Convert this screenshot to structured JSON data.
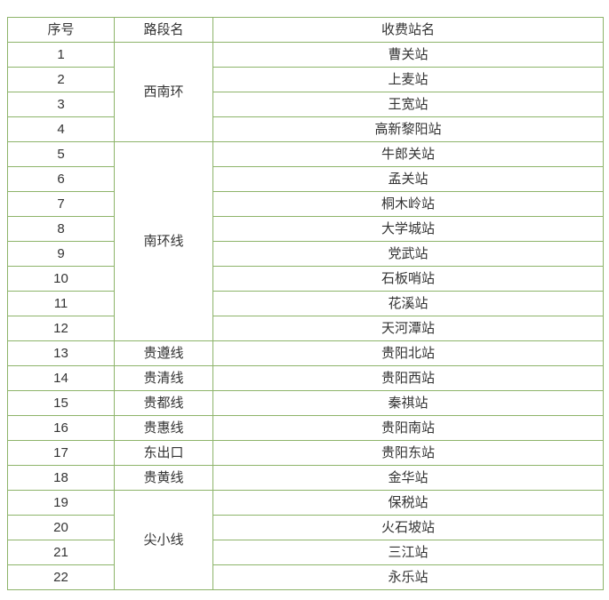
{
  "colors": {
    "border": "#8db46a",
    "text": "#333333"
  },
  "table": {
    "headers": [
      "序号",
      "路段名",
      "收费站名"
    ],
    "segments": [
      {
        "name": "西南环",
        "rows": 4
      },
      {
        "name": "南环线",
        "rows": 8
      },
      {
        "name": "贵遵线",
        "rows": 1
      },
      {
        "name": "贵清线",
        "rows": 1
      },
      {
        "name": "贵都线",
        "rows": 1
      },
      {
        "name": "贵惠线",
        "rows": 1
      },
      {
        "name": "东出口",
        "rows": 1
      },
      {
        "name": "贵黄线",
        "rows": 1
      },
      {
        "name": "尖小线",
        "rows": 4
      }
    ],
    "rows": [
      {
        "no": "1",
        "station": "曹关站"
      },
      {
        "no": "2",
        "station": "上麦站"
      },
      {
        "no": "3",
        "station": "王宽站"
      },
      {
        "no": "4",
        "station": "高新黎阳站"
      },
      {
        "no": "5",
        "station": "牛郎关站"
      },
      {
        "no": "6",
        "station": "孟关站"
      },
      {
        "no": "7",
        "station": "桐木岭站"
      },
      {
        "no": "8",
        "station": "大学城站"
      },
      {
        "no": "9",
        "station": "党武站"
      },
      {
        "no": "10",
        "station": "石板哨站"
      },
      {
        "no": "11",
        "station": "花溪站"
      },
      {
        "no": "12",
        "station": "天河潭站"
      },
      {
        "no": "13",
        "station": "贵阳北站"
      },
      {
        "no": "14",
        "station": "贵阳西站"
      },
      {
        "no": "15",
        "station": "秦祺站"
      },
      {
        "no": "16",
        "station": "贵阳南站"
      },
      {
        "no": "17",
        "station": "贵阳东站"
      },
      {
        "no": "18",
        "station": "金华站"
      },
      {
        "no": "19",
        "station": "保税站"
      },
      {
        "no": "20",
        "station": "火石坡站"
      },
      {
        "no": "21",
        "station": "三江站"
      },
      {
        "no": "22",
        "station": "永乐站"
      }
    ]
  }
}
